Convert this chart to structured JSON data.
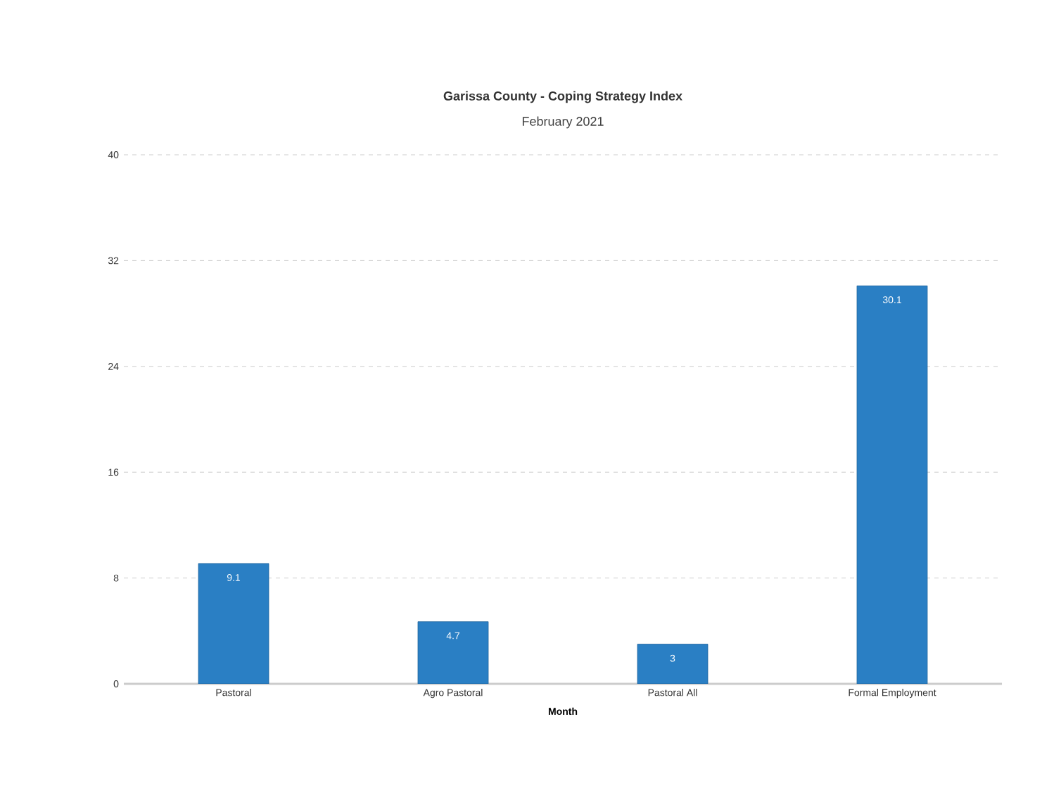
{
  "chart_data": {
    "type": "bar",
    "title": "Garissa County - Coping Strategy Index",
    "subtitle": "February 2021",
    "xlabel": "Month",
    "categories": [
      "Pastoral",
      "Agro Pastoral",
      "Pastoral All",
      "Formal Employment"
    ],
    "values": [
      9.1,
      4.7,
      3,
      30.1
    ],
    "color": "#2a7fc4",
    "ylim": [
      0,
      40
    ],
    "yticks": [
      0,
      8,
      16,
      24,
      32,
      40
    ],
    "grid": "y",
    "data_labels": true
  }
}
